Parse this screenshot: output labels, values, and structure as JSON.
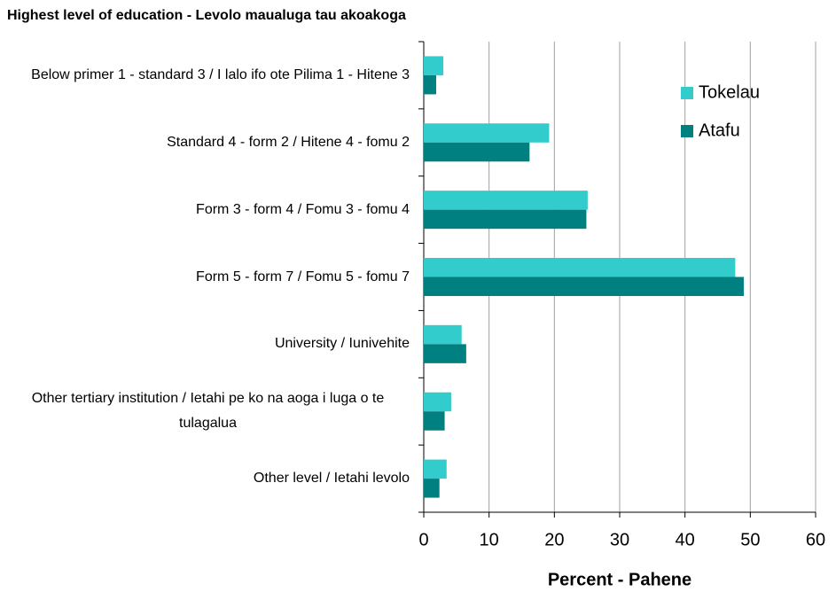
{
  "chart_data": {
    "type": "bar",
    "orientation": "horizontal",
    "title": "Highest level of education - Levolo maualuga tau akoakoga",
    "x_label": "Percent - Pahene",
    "categories": [
      "Below primer 1 - standard 3 / I lalo ifo ote Pilima 1 - Hitene 3",
      "Standard 4  - form 2 / Hitene 4 - fomu 2",
      "Form 3 - form 4 / Fomu 3 - fomu 4",
      "Form 5 - form 7 / Fomu 5 - fomu 7",
      "University / Iunivehite",
      "Other tertiary institution / Ietahi pe ko na aoga i luga o te tulagalua",
      "Other level / Ietahi levolo"
    ],
    "series": [
      {
        "name": "Tokelau",
        "color": "#33cccc",
        "values": [
          3.0,
          19.2,
          25.1,
          47.7,
          5.8,
          4.2,
          3.5
        ]
      },
      {
        "name": "Atafu",
        "color": "#008080",
        "values": [
          1.9,
          16.2,
          24.9,
          49.0,
          6.5,
          3.2,
          2.4
        ]
      }
    ],
    "xlim": [
      0,
      60
    ],
    "xticks": [
      0,
      10,
      20,
      30,
      40,
      50,
      60
    ],
    "grid": true,
    "legend": "top-right"
  }
}
